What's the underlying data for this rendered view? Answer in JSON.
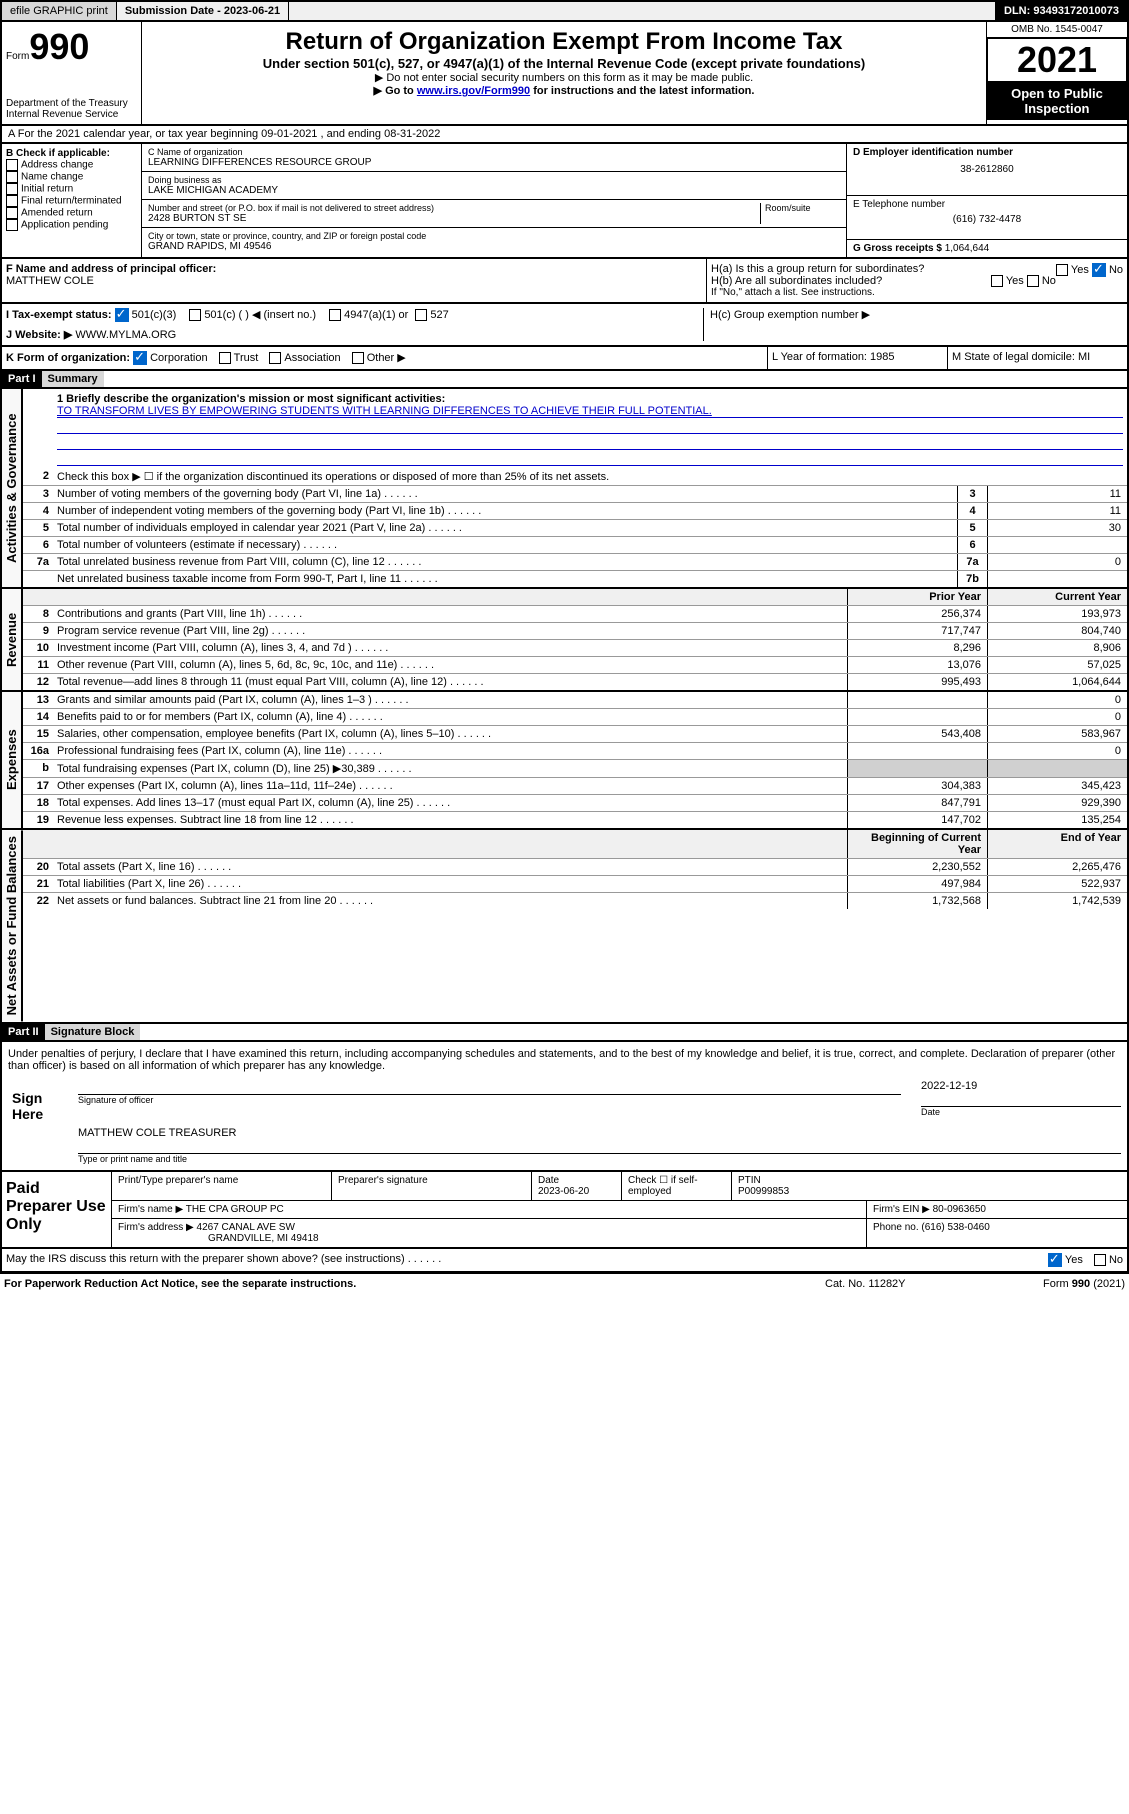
{
  "topbar": {
    "efile": "efile GRAPHIC print",
    "subdate_label": "Submission Date - 2023-06-21",
    "dln": "DLN: 93493172010073"
  },
  "header": {
    "form_label": "Form",
    "form_no": "990",
    "dept": "Department of the Treasury",
    "irs": "Internal Revenue Service",
    "title": "Return of Organization Exempt From Income Tax",
    "sub1": "Under section 501(c), 527, or 4947(a)(1) of the Internal Revenue Code (except private foundations)",
    "sub2": "▶ Do not enter social security numbers on this form as it may be made public.",
    "sub3_pre": "▶ Go to ",
    "sub3_link": "www.irs.gov/Form990",
    "sub3_post": " for instructions and the latest information.",
    "omb": "OMB No. 1545-0047",
    "year": "2021",
    "open": "Open to Public Inspection"
  },
  "A": {
    "label": "A For the 2021 calendar year, or tax year beginning 09-01-2021   , and ending 08-31-2022"
  },
  "B": {
    "label": "B Check if applicable:",
    "opts": [
      "Address change",
      "Name change",
      "Initial return",
      "Final return/terminated",
      "Amended return",
      "Application pending"
    ]
  },
  "C": {
    "name_label": "C Name of organization",
    "name": "LEARNING DIFFERENCES RESOURCE GROUP",
    "dba_label": "Doing business as",
    "dba": "LAKE MICHIGAN ACADEMY",
    "street_label": "Number and street (or P.O. box if mail is not delivered to street address)",
    "room_label": "Room/suite",
    "street": "2428 BURTON ST SE",
    "city_label": "City or town, state or province, country, and ZIP or foreign postal code",
    "city": "GRAND RAPIDS, MI  49546"
  },
  "D": {
    "label": "D Employer identification number",
    "val": "38-2612860"
  },
  "E": {
    "label": "E Telephone number",
    "val": "(616) 732-4478"
  },
  "G": {
    "label": "G Gross receipts $",
    "val": "1,064,644"
  },
  "F": {
    "label": "F Name and address of principal officer:",
    "name": "MATTHEW COLE"
  },
  "H": {
    "a": "H(a)  Is this a group return for subordinates?",
    "b": "H(b)  Are all subordinates included?",
    "b_note": "If \"No,\" attach a list. See instructions.",
    "c": "H(c)  Group exemption number ▶",
    "yes": "Yes",
    "no": "No"
  },
  "I": {
    "label": "I   Tax-exempt status:",
    "o1": "501(c)(3)",
    "o2": "501(c) (  ) ◀ (insert no.)",
    "o3": "4947(a)(1) or",
    "o4": "527"
  },
  "J": {
    "label": "J   Website: ▶",
    "val": "WWW.MYLMA.ORG"
  },
  "K": {
    "label": "K Form of organization:",
    "opts": [
      "Corporation",
      "Trust",
      "Association",
      "Other ▶"
    ]
  },
  "L": {
    "label": "L Year of formation: 1985"
  },
  "M": {
    "label": "M State of legal domicile: MI"
  },
  "part1": {
    "hdr": "Part I",
    "title": "Summary",
    "line1_label": "1  Briefly describe the organization's mission or most significant activities:",
    "mission": "TO TRANSFORM LIVES BY EMPOWERING STUDENTS WITH LEARNING DIFFERENCES TO ACHIEVE THEIR FULL POTENTIAL.",
    "line2": "Check this box ▶ ☐  if the organization discontinued its operations or disposed of more than 25% of its net assets.",
    "rows_gov": [
      {
        "n": "3",
        "d": "Number of voting members of the governing body (Part VI, line 1a)",
        "b": "3",
        "v": "11"
      },
      {
        "n": "4",
        "d": "Number of independent voting members of the governing body (Part VI, line 1b)",
        "b": "4",
        "v": "11"
      },
      {
        "n": "5",
        "d": "Total number of individuals employed in calendar year 2021 (Part V, line 2a)",
        "b": "5",
        "v": "30"
      },
      {
        "n": "6",
        "d": "Total number of volunteers (estimate if necessary)",
        "b": "6",
        "v": ""
      },
      {
        "n": "7a",
        "d": "Total unrelated business revenue from Part VIII, column (C), line 12",
        "b": "7a",
        "v": "0"
      },
      {
        "n": "",
        "d": "Net unrelated business taxable income from Form 990-T, Part I, line 11",
        "b": "7b",
        "v": ""
      }
    ],
    "col_prior": "Prior Year",
    "col_current": "Current Year",
    "rows_rev": [
      {
        "n": "8",
        "d": "Contributions and grants (Part VIII, line 1h)",
        "p": "256,374",
        "c": "193,973"
      },
      {
        "n": "9",
        "d": "Program service revenue (Part VIII, line 2g)",
        "p": "717,747",
        "c": "804,740"
      },
      {
        "n": "10",
        "d": "Investment income (Part VIII, column (A), lines 3, 4, and 7d )",
        "p": "8,296",
        "c": "8,906"
      },
      {
        "n": "11",
        "d": "Other revenue (Part VIII, column (A), lines 5, 6d, 8c, 9c, 10c, and 11e)",
        "p": "13,076",
        "c": "57,025"
      },
      {
        "n": "12",
        "d": "Total revenue—add lines 8 through 11 (must equal Part VIII, column (A), line 12)",
        "p": "995,493",
        "c": "1,064,644"
      }
    ],
    "rows_exp": [
      {
        "n": "13",
        "d": "Grants and similar amounts paid (Part IX, column (A), lines 1–3 )",
        "p": "",
        "c": "0"
      },
      {
        "n": "14",
        "d": "Benefits paid to or for members (Part IX, column (A), line 4)",
        "p": "",
        "c": "0"
      },
      {
        "n": "15",
        "d": "Salaries, other compensation, employee benefits (Part IX, column (A), lines 5–10)",
        "p": "543,408",
        "c": "583,967"
      },
      {
        "n": "16a",
        "d": "Professional fundraising fees (Part IX, column (A), line 11e)",
        "p": "",
        "c": "0"
      },
      {
        "n": "b",
        "d": "Total fundraising expenses (Part IX, column (D), line 25) ▶30,389",
        "p": "",
        "c": "",
        "gray": true
      },
      {
        "n": "17",
        "d": "Other expenses (Part IX, column (A), lines 11a–11d, 11f–24e)",
        "p": "304,383",
        "c": "345,423"
      },
      {
        "n": "18",
        "d": "Total expenses. Add lines 13–17 (must equal Part IX, column (A), line 25)",
        "p": "847,791",
        "c": "929,390"
      },
      {
        "n": "19",
        "d": "Revenue less expenses. Subtract line 18 from line 12",
        "p": "147,702",
        "c": "135,254"
      }
    ],
    "col_begin": "Beginning of Current Year",
    "col_end": "End of Year",
    "rows_net": [
      {
        "n": "20",
        "d": "Total assets (Part X, line 16)",
        "p": "2,230,552",
        "c": "2,265,476"
      },
      {
        "n": "21",
        "d": "Total liabilities (Part X, line 26)",
        "p": "497,984",
        "c": "522,937"
      },
      {
        "n": "22",
        "d": "Net assets or fund balances. Subtract line 21 from line 20",
        "p": "1,732,568",
        "c": "1,742,539"
      }
    ],
    "tab_gov": "Activities & Governance",
    "tab_rev": "Revenue",
    "tab_exp": "Expenses",
    "tab_net": "Net Assets or Fund Balances"
  },
  "part2": {
    "hdr": "Part II",
    "title": "Signature Block",
    "decl": "Under penalties of perjury, I declare that I have examined this return, including accompanying schedules and statements, and to the best of my knowledge and belief, it is true, correct, and complete. Declaration of preparer (other than officer) is based on all information of which preparer has any knowledge.",
    "sign_here": "Sign Here",
    "sig_officer": "Signature of officer",
    "sig_date": "2022-12-19",
    "date_label": "Date",
    "officer_name": "MATTHEW COLE  TREASURER",
    "officer_label": "Type or print name and title"
  },
  "prep": {
    "title": "Paid Preparer Use Only",
    "h1": "Print/Type preparer's name",
    "h2": "Preparer's signature",
    "h3": "Date",
    "h4": "Check ☐ if self-employed",
    "h5": "PTIN",
    "date": "2023-06-20",
    "ptin": "P00999853",
    "firm_label": "Firm's name   ▶",
    "firm": "THE CPA GROUP PC",
    "ein_label": "Firm's EIN ▶",
    "ein": "80-0963650",
    "addr_label": "Firm's address ▶",
    "addr1": "4267 CANAL AVE SW",
    "addr2": "GRANDVILLE, MI  49418",
    "phone_label": "Phone no.",
    "phone": "(616) 538-0460"
  },
  "footer": {
    "discuss": "May the IRS discuss this return with the preparer shown above? (see instructions)",
    "yes": "Yes",
    "no": "No",
    "pra": "For Paperwork Reduction Act Notice, see the separate instructions.",
    "cat": "Cat. No. 11282Y",
    "form": "Form 990 (2021)"
  }
}
